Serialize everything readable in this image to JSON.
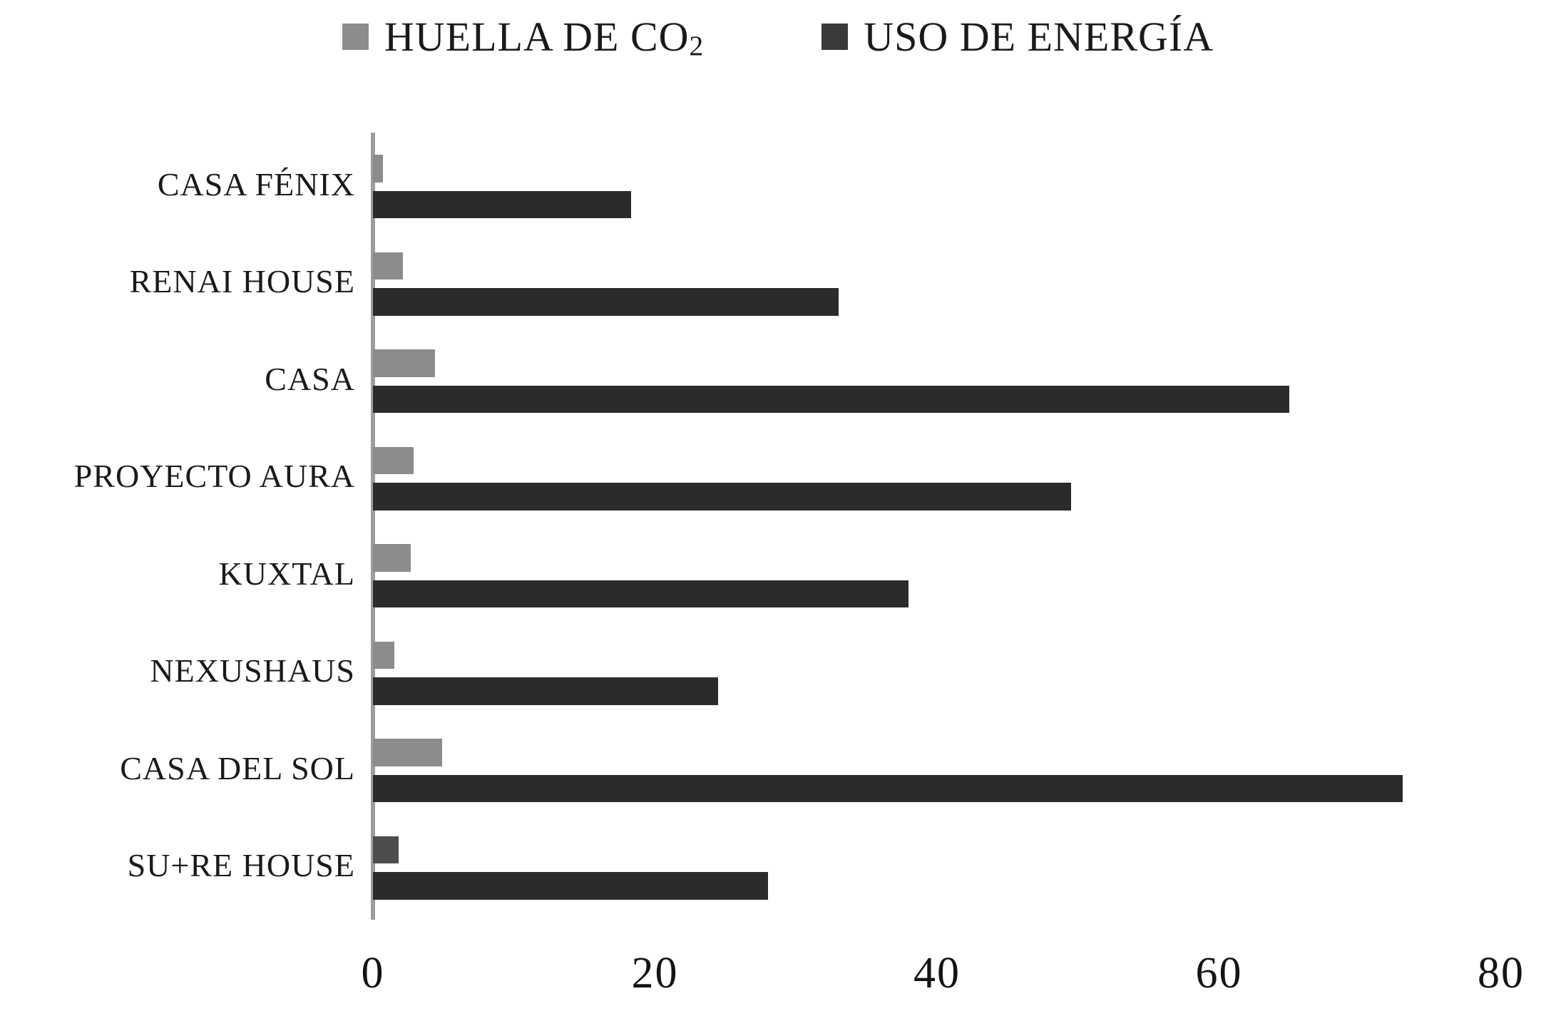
{
  "legend": {
    "items": [
      {
        "label_main": "HUELLA DE CO",
        "label_sub": "2",
        "swatch_color": "#8c8c8c"
      },
      {
        "label_main": "USO DE ENERGÍA",
        "label_sub": "",
        "swatch_color": "#3a3a3a"
      }
    ]
  },
  "chart_data": {
    "type": "bar",
    "orientation": "horizontal",
    "title": "",
    "xlabel": "",
    "ylabel": "",
    "categories": [
      "CASA FÉNIX",
      "RENAI HOUSE",
      "CASA",
      "PROYECTO AURA",
      "KUXTAL",
      "NEXUSHAUS",
      "CASA DEL SOL",
      "SU+RE HOUSE"
    ],
    "series": [
      {
        "name": "HUELLA DE CO2",
        "color": "#8c8c8c",
        "values": [
          0.7,
          2.1,
          4.4,
          2.9,
          2.7,
          1.5,
          4.9,
          1.8
        ],
        "point_colors": [
          null,
          null,
          null,
          null,
          null,
          null,
          null,
          "#4d4d4d"
        ]
      },
      {
        "name": "USO DE ENERGÍA",
        "color": "#2c2b2b",
        "values": [
          18.3,
          33,
          65,
          49.5,
          38,
          24.5,
          73,
          28
        ],
        "point_colors": [
          null,
          null,
          null,
          null,
          null,
          null,
          null,
          null
        ]
      }
    ],
    "xlim": [
      0,
      80
    ],
    "xticks": [
      0,
      20,
      40,
      60,
      80
    ],
    "legend_position": "top",
    "grid": false,
    "axis_line_color": "#9d9d9d",
    "background_color": "#ffffff"
  }
}
